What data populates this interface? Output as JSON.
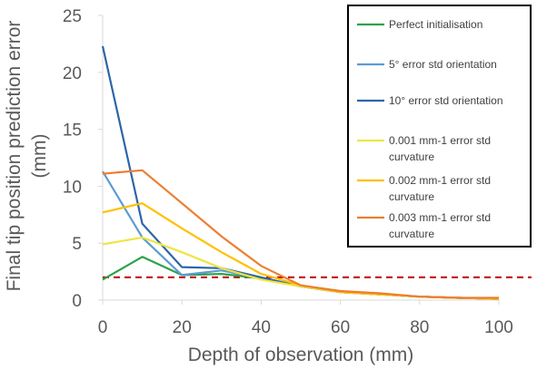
{
  "chart_data": {
    "type": "line",
    "xlabel": "Depth of observation (mm)",
    "ylabel_lines": [
      "Final tip position prediction error",
      "(mm)"
    ],
    "xlim": [
      0,
      100
    ],
    "ylim": [
      0,
      25
    ],
    "x_ticks": [
      0,
      20,
      40,
      60,
      80,
      100
    ],
    "y_ticks": [
      0,
      5,
      10,
      15,
      20,
      25
    ],
    "grid": false,
    "legend_position": "top-right",
    "x": [
      0,
      10,
      20,
      30,
      40,
      50,
      60,
      70,
      80,
      90,
      100
    ],
    "series": [
      {
        "name": "Perfect initialisation",
        "legend_lines": [
          "Perfect initialisation"
        ],
        "color": "#2ca24a",
        "values": [
          1.8,
          3.8,
          2.2,
          2.3,
          1.9,
          1.2,
          0.7,
          0.5,
          0.3,
          0.2,
          0.1
        ]
      },
      {
        "name": "5° error std orientation",
        "legend_lines": [
          "5° error std orientation"
        ],
        "color": "#5b9bd5",
        "values": [
          11.3,
          5.5,
          2.2,
          2.6,
          1.9,
          1.2,
          0.7,
          0.5,
          0.3,
          0.2,
          0.1
        ]
      },
      {
        "name": "10° error std orientation",
        "legend_lines": [
          "10° error std orientation"
        ],
        "color": "#2e65a8",
        "values": [
          22.3,
          6.7,
          2.9,
          2.8,
          2.0,
          1.2,
          0.7,
          0.5,
          0.3,
          0.2,
          0.1
        ]
      },
      {
        "name": "0.001 mm-1 error std curvature",
        "legend_lines": [
          "0.001 mm-1 error std",
          "curvature"
        ],
        "color": "#f0e442",
        "values": [
          4.9,
          5.5,
          4.2,
          2.8,
          1.8,
          1.2,
          0.7,
          0.5,
          0.3,
          0.2,
          0.1
        ]
      },
      {
        "name": "0.002 mm-1 error std curvature",
        "legend_lines": [
          "0.002 mm-1 error std",
          "curvature"
        ],
        "color": "#ffc000",
        "values": [
          7.7,
          8.5,
          6.3,
          4.2,
          2.3,
          1.3,
          0.7,
          0.5,
          0.3,
          0.2,
          0.1
        ]
      },
      {
        "name": "0.003 mm-1 error std curvature",
        "legend_lines": [
          "0.003 mm-1 error std",
          "curvature"
        ],
        "color": "#ed7d31",
        "values": [
          11.1,
          11.4,
          8.5,
          5.6,
          3.0,
          1.3,
          0.8,
          0.6,
          0.3,
          0.2,
          0.2
        ]
      }
    ],
    "reference_line": {
      "y": 2,
      "color": "#c00000",
      "style": "dashed"
    }
  }
}
